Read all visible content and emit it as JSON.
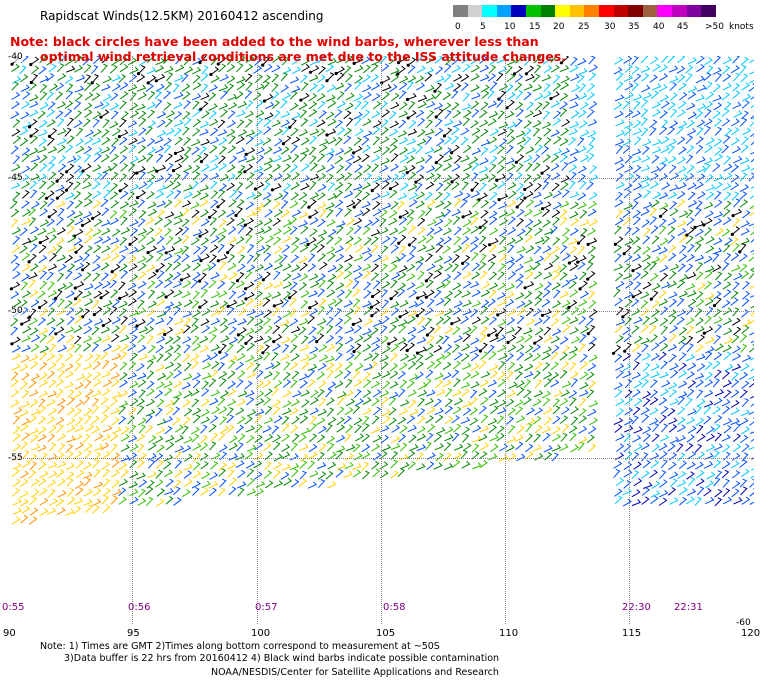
{
  "title": "Rapidscat Winds(12.5KM) 20160412 ascending",
  "note_line1": "Note: black circles have been added to the wind barbs, wherever less than",
  "note_line2": "optimal wind retrieval conditions are met due to the ISS attitude changes.",
  "colorbar": {
    "labels": [
      "0",
      "5",
      "10",
      "15",
      "20",
      "25",
      "30",
      "35",
      "40",
      "45",
      ">50",
      "knots"
    ],
    "colors": [
      "#808080",
      "#d0d0d0",
      "#00ffff",
      "#00a0ff",
      "#0000c0",
      "#00c000",
      "#008000",
      "#ffff00",
      "#ffc000",
      "#ff8000",
      "#ff0000",
      "#c00000",
      "#800000",
      "#a06040",
      "#ff00ff",
      "#c000c0",
      "#8000a0",
      "#400060"
    ]
  },
  "lat_labels": [
    "-40",
    "-45",
    "-50",
    "-55",
    "-60"
  ],
  "lon_labels": [
    "90",
    "95",
    "100",
    "105",
    "110",
    "115",
    "120"
  ],
  "time_labels": [
    "0:55",
    "0:56",
    "0:57",
    "0:58",
    "22:30",
    "22:31"
  ],
  "bottom_notes": {
    "line1": "Note: 1) Times are GMT 2)Times along bottom correspond to measurement at ~50S",
    "line2": "3)Data buffer is 22 hrs from 20160412 4) Black wind barbs indicate possible contamination",
    "credit": "NOAA/NESDIS/Center for Satellite Applications and Research"
  }
}
